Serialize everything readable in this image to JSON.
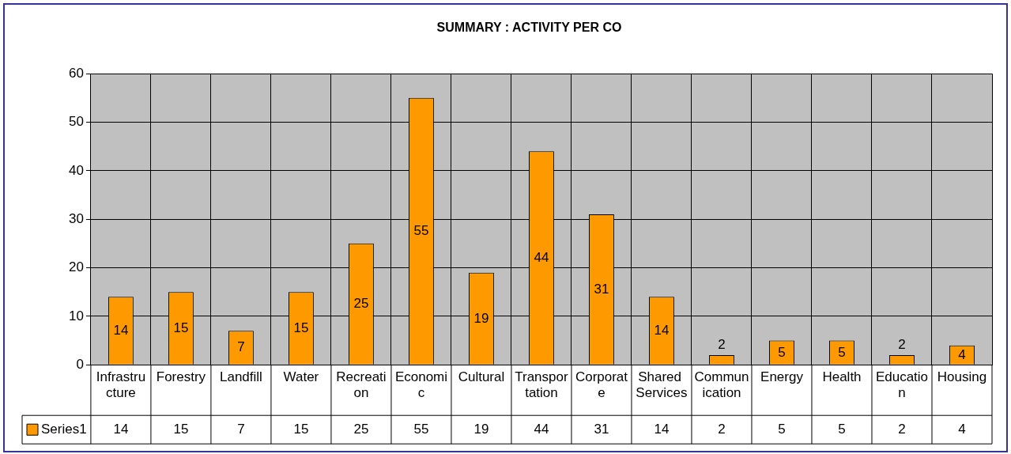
{
  "chart_data": {
    "type": "bar",
    "title": "SUMMARY : ACTIVITY PER CO",
    "categories": [
      "Infrastructure",
      "Forestry",
      "Landfill",
      "Water",
      "Recreation",
      "Economic",
      "Cultural",
      "Transportation",
      "Corporate",
      "Shared Services",
      "Communication",
      "Energy",
      "Health",
      "Education",
      "Housing"
    ],
    "series": [
      {
        "name": "Series1",
        "color": "#ff9900",
        "values": [
          14,
          15,
          7,
          15,
          25,
          55,
          19,
          44,
          31,
          14,
          2,
          5,
          5,
          2,
          4
        ],
        "value_labels": [
          "14",
          "15",
          "7",
          "15",
          "25",
          "55",
          "19",
          "44",
          "31",
          "14",
          "2",
          "5",
          "5",
          "2",
          "4"
        ]
      }
    ],
    "annotations": [
      "14",
      "15",
      "7",
      "15",
      "25",
      "55",
      "19",
      "44",
      "31",
      "14",
      "2",
      "5",
      "5",
      "2",
      "4"
    ],
    "ylim": [
      0,
      60
    ],
    "yticks": [
      0,
      10,
      20,
      30,
      40,
      50,
      60
    ],
    "grid": true,
    "legend": "bottom left"
  }
}
